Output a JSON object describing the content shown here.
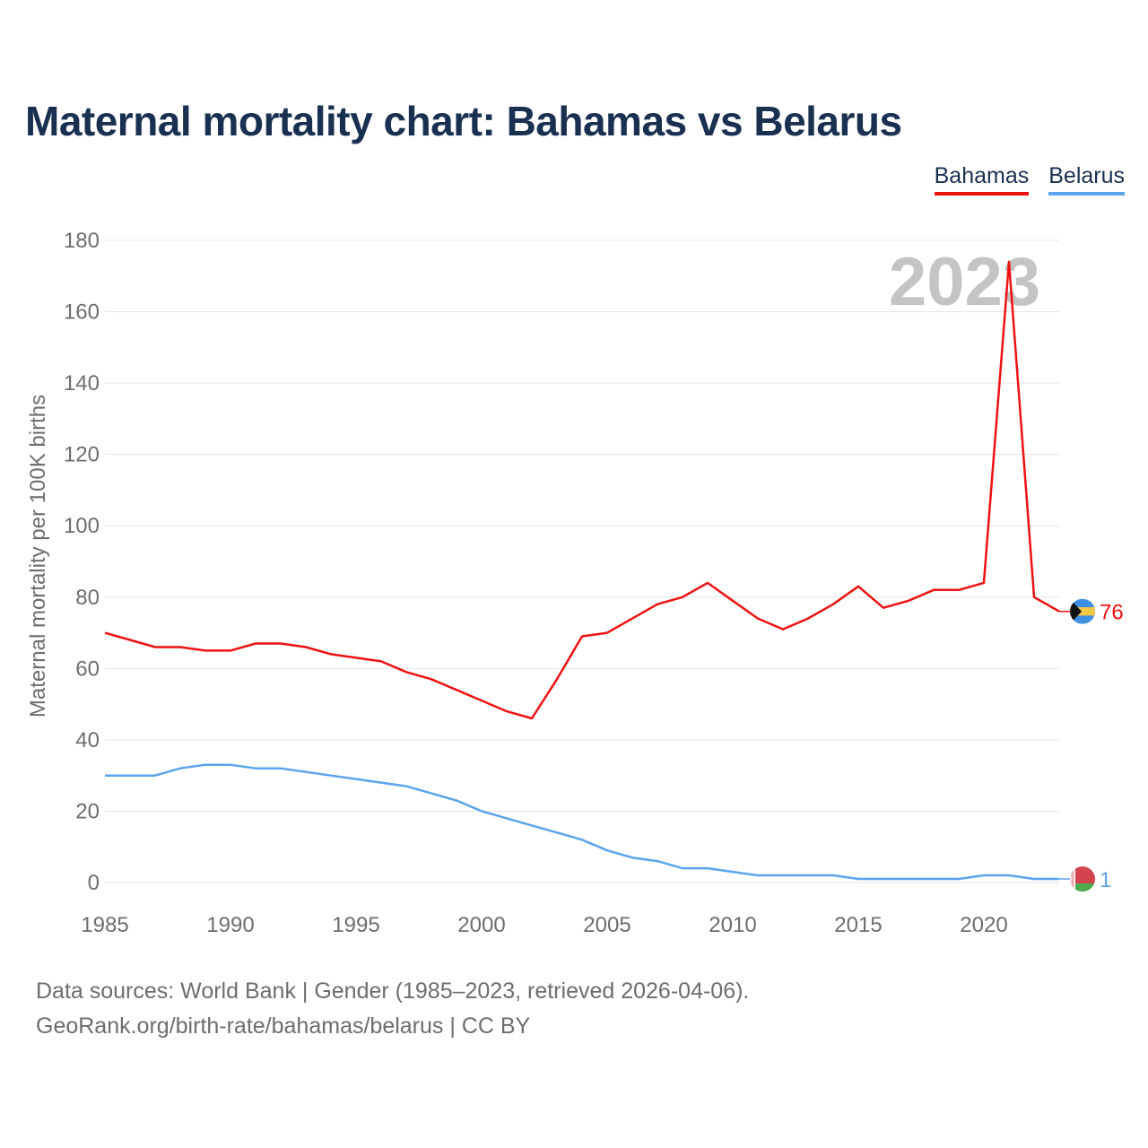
{
  "title": "Maternal mortality chart: Bahamas vs Belarus",
  "legend": [
    {
      "name": "Bahamas",
      "color": "#ee1111"
    },
    {
      "name": "Belarus",
      "color": "#5ba4ec"
    }
  ],
  "footer": {
    "source_line": "Data sources: World Bank | Gender (1985–2023, retrieved 2026-04-06).",
    "credit_line": "GeoRank.org/birth-rate/bahamas/belarus | CC BY"
  },
  "chart_data": {
    "type": "line",
    "title": "Maternal mortality chart: Bahamas vs Belarus",
    "ylabel": "Maternal mortality per 100K births",
    "xlabel": "",
    "year_label": "2023",
    "xlim": [
      1985,
      2023
    ],
    "ylim": [
      0,
      180
    ],
    "x_ticks": [
      1985,
      1990,
      1995,
      2000,
      2005,
      2010,
      2015,
      2020
    ],
    "y_ticks": [
      0,
      20,
      40,
      60,
      80,
      100,
      120,
      140,
      160,
      180
    ],
    "grid": true,
    "legend_position": "top-right",
    "x": [
      1985,
      1986,
      1987,
      1988,
      1989,
      1990,
      1991,
      1992,
      1993,
      1994,
      1995,
      1996,
      1997,
      1998,
      1999,
      2000,
      2001,
      2002,
      2003,
      2004,
      2005,
      2006,
      2007,
      2008,
      2009,
      2010,
      2011,
      2012,
      2013,
      2014,
      2015,
      2016,
      2017,
      2018,
      2019,
      2020,
      2021,
      2022,
      2023
    ],
    "series": [
      {
        "name": "Bahamas",
        "color": "#ee1111",
        "end_label": "76",
        "values": [
          70,
          68,
          66,
          66,
          65,
          65,
          67,
          67,
          66,
          64,
          63,
          62,
          59,
          57,
          54,
          51,
          48,
          46,
          57,
          69,
          70,
          74,
          78,
          80,
          84,
          79,
          74,
          71,
          74,
          78,
          83,
          77,
          79,
          82,
          82,
          84,
          174,
          80,
          76
        ]
      },
      {
        "name": "Belarus",
        "color": "#5ba4ec",
        "end_label": "1",
        "values": [
          30,
          30,
          30,
          32,
          33,
          33,
          32,
          32,
          31,
          30,
          29,
          28,
          27,
          25,
          23,
          20,
          18,
          16,
          14,
          12,
          9,
          7,
          6,
          4,
          4,
          3,
          2,
          2,
          2,
          2,
          1,
          1,
          1,
          1,
          1,
          2,
          2,
          1,
          1
        ]
      }
    ]
  }
}
